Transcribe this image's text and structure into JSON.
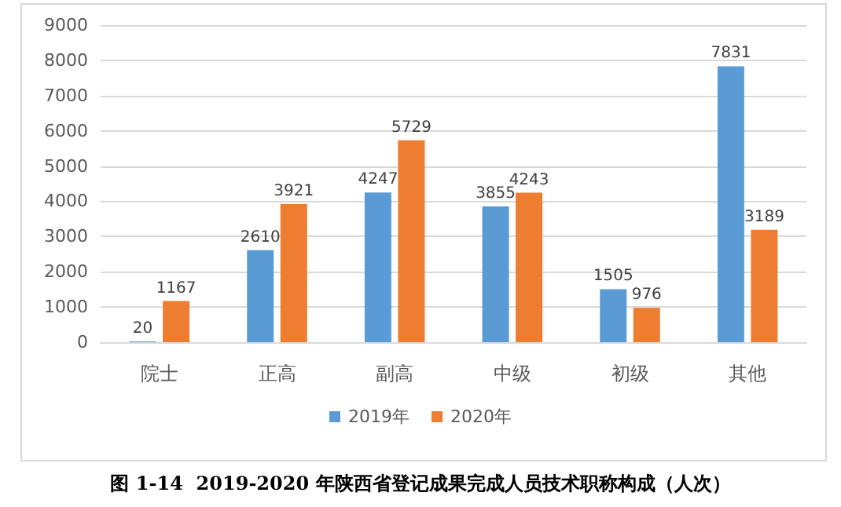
{
  "chart_data": {
    "type": "bar",
    "title": "图 1-14  2019-2020 年陕西省登记成果完成人员技术职称构成（人次）",
    "categories": [
      "院士",
      "正高",
      "副高",
      "中级",
      "初级",
      "其他"
    ],
    "series": [
      {
        "name": "2019年",
        "color": "#5b9bd5",
        "values": [
          20,
          2610,
          4247,
          3855,
          1505,
          7831
        ]
      },
      {
        "name": "2020年",
        "color": "#ed7d31",
        "values": [
          1167,
          3921,
          5729,
          4243,
          976,
          3189
        ]
      }
    ],
    "ylim": [
      0,
      9000
    ],
    "yticks": [
      0,
      1000,
      2000,
      3000,
      4000,
      5000,
      6000,
      7000,
      8000,
      9000
    ],
    "grid": "y",
    "legend": "bottom",
    "data_labels": true
  }
}
